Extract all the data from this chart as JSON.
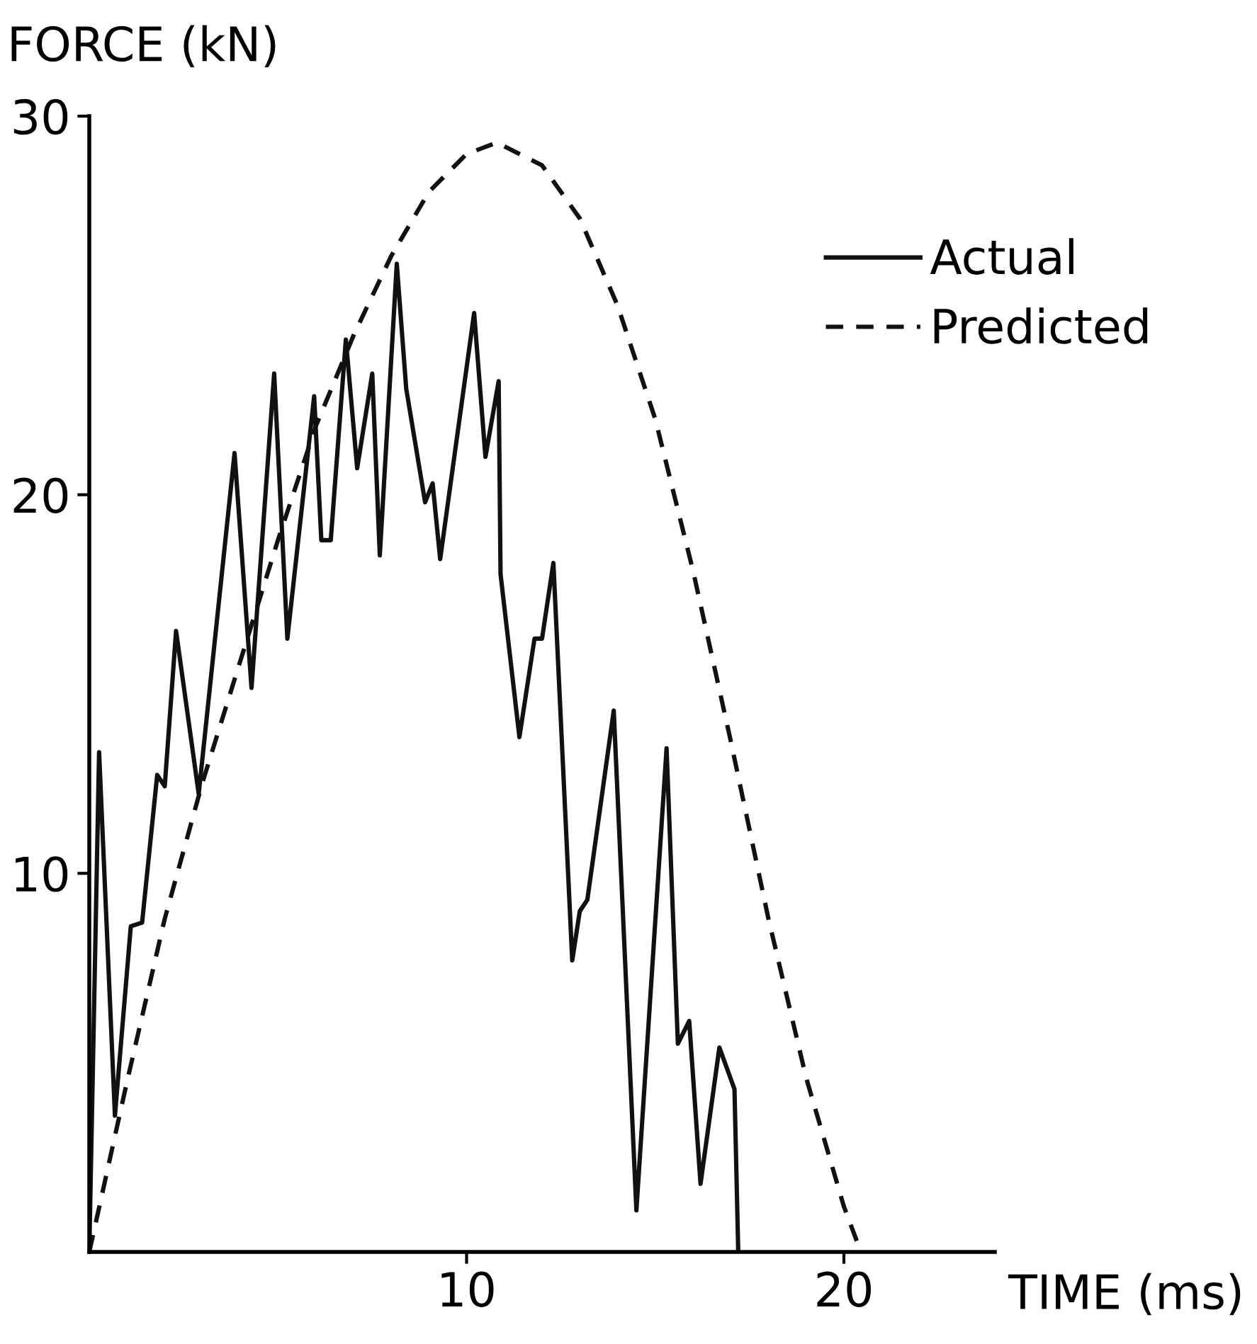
{
  "chart_data": {
    "type": "line",
    "xlabel": "TIME (ms)",
    "ylabel": "FORCE (kN)",
    "xlim": [
      0,
      24
    ],
    "ylim": [
      0,
      30
    ],
    "xticks": [
      10,
      20
    ],
    "yticks": [
      10,
      20,
      30
    ],
    "grid": false,
    "legend": "top right",
    "series": [
      {
        "name": "Actual",
        "color": "#111111",
        "line_style": "solid",
        "x": [
          0,
          0.26,
          0.68,
          1.1,
          1.4,
          1.8,
          2.0,
          2.3,
          2.9,
          3.85,
          4.3,
          4.9,
          5.25,
          5.96,
          6.15,
          6.4,
          6.8,
          7.1,
          7.5,
          7.7,
          8.15,
          8.4,
          8.9,
          9.1,
          9.3,
          10.2,
          10.5,
          10.85,
          10.9,
          11.4,
          11.8,
          12.0,
          12.3,
          12.8,
          13.0,
          13.2,
          13.9,
          14.5,
          15.3,
          15.6,
          15.9,
          16.2,
          16.7,
          17.1,
          17.2
        ],
        "values": [
          0,
          13.2,
          3.6,
          8.6,
          8.7,
          12.6,
          12.3,
          16.4,
          12.1,
          21.1,
          14.9,
          23.2,
          16.2,
          22.6,
          18.8,
          18.8,
          24.1,
          20.7,
          23.2,
          18.4,
          26.1,
          22.8,
          19.8,
          20.3,
          18.3,
          24.8,
          21.0,
          23.0,
          17.9,
          13.6,
          16.2,
          16.2,
          18.2,
          7.7,
          9.0,
          9.3,
          14.3,
          1.1,
          13.3,
          5.5,
          6.1,
          1.8,
          5.4,
          4.3,
          0
        ]
      },
      {
        "name": "Predicted",
        "color": "#111111",
        "line_style": "dashed",
        "x": [
          0,
          1,
          2,
          3,
          4,
          5,
          6,
          7,
          8,
          9,
          10,
          10.8,
          12,
          13,
          14,
          15,
          16,
          17,
          18,
          19,
          20,
          20.45
        ],
        "values": [
          0,
          4.5,
          8.8,
          12.4,
          15.6,
          18.8,
          21.8,
          24.2,
          26.3,
          28.0,
          29.0,
          29.3,
          28.7,
          27.3,
          25.0,
          22.0,
          18.0,
          13.5,
          8.8,
          4.6,
          1.2,
          0
        ]
      }
    ]
  }
}
